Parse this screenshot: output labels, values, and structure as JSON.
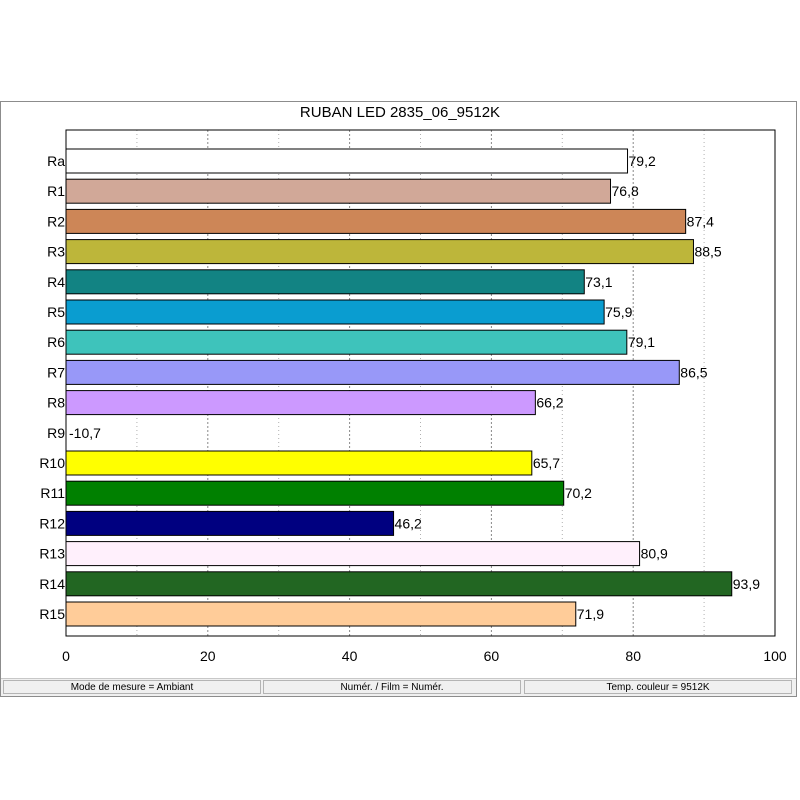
{
  "chart_data": {
    "type": "bar",
    "orientation": "horizontal",
    "title": "RUBAN LED 2835_06_9512K",
    "categories": [
      "Ra",
      "R1",
      "R2",
      "R3",
      "R4",
      "R5",
      "R6",
      "R7",
      "R8",
      "R9",
      "R10",
      "R11",
      "R12",
      "R13",
      "R14",
      "R15"
    ],
    "values": [
      79.2,
      76.8,
      87.4,
      88.5,
      73.1,
      75.9,
      79.1,
      86.5,
      66.2,
      -10.7,
      65.7,
      70.2,
      46.2,
      80.9,
      93.9,
      71.9
    ],
    "value_labels": [
      "79,2",
      "76,8",
      "87,4",
      "88,5",
      "73,1",
      "75,9",
      "79,1",
      "86,5",
      "66,2",
      "-10,7",
      "65,7",
      "70,2",
      "46,2",
      "80,9",
      "93,9",
      "71,9"
    ],
    "colors": [
      "#ffffff",
      "#d1a898",
      "#cd8657",
      "#bdb63a",
      "#128383",
      "#0a9dd0",
      "#3ec3bb",
      "#9898f8",
      "#cc99ff",
      "#ffffff",
      "#ffff00",
      "#008000",
      "#000080",
      "#fff0fc",
      "#226622",
      "#ffcc99"
    ],
    "xlim": [
      0,
      100
    ],
    "xticks": [
      0,
      20,
      40,
      60,
      80,
      100
    ],
    "grid": "vertical-dashed",
    "xlabel": "",
    "ylabel": ""
  },
  "status": {
    "mode": "Mode de mesure = Ambiant",
    "film": "Numér. / Film = Numér.",
    "temp": "Temp. couleur = 9512K"
  }
}
